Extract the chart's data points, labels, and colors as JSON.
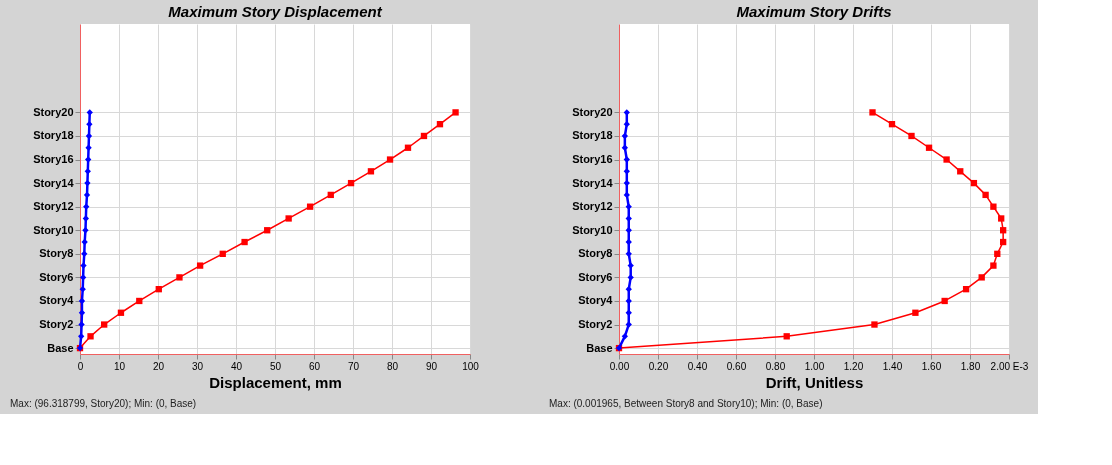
{
  "chart_data": [
    {
      "type": "line",
      "orientation": "horizontal",
      "title": "Maximum Story Displacement",
      "xlabel": "Displacement, mm",
      "categories": [
        null,
        null,
        null,
        null,
        null,
        null,
        null,
        "Story20",
        null,
        "Story18",
        null,
        "Story16",
        null,
        "Story14",
        null,
        "Story12",
        null,
        "Story10",
        null,
        "Story8",
        null,
        "Story6",
        null,
        "Story4",
        null,
        "Story2",
        null,
        "Base"
      ],
      "series": [
        {
          "color": "#ff0000",
          "marker": "square",
          "values": [
            null,
            null,
            null,
            null,
            null,
            null,
            null,
            96.3,
            92.3,
            88.2,
            84.1,
            79.5,
            74.6,
            69.5,
            64.3,
            59,
            53.5,
            48,
            42.2,
            36.6,
            30.8,
            25.5,
            20.2,
            15.2,
            10.5,
            6.2,
            2.7,
            0
          ]
        },
        {
          "color": "#0000ff",
          "marker": "diamond",
          "values": [
            null,
            null,
            null,
            null,
            null,
            null,
            null,
            2.5,
            2.4,
            2.3,
            2.2,
            2.1,
            2.0,
            1.9,
            1.8,
            1.6,
            1.5,
            1.4,
            1.2,
            1.1,
            0.9,
            0.8,
            0.7,
            0.5,
            0.5,
            0.4,
            0.3,
            0
          ]
        }
      ],
      "xlim": [
        0,
        100
      ],
      "xticks": [
        0,
        10,
        20,
        30,
        40,
        50,
        60,
        70,
        80,
        90,
        100
      ],
      "grid": true,
      "annotations": [
        "Max: (96.318799, Story20);   Min: (0, Base)"
      ]
    },
    {
      "type": "line",
      "orientation": "horizontal",
      "title": "Maximum Story Drifts",
      "xlabel": "Drift, Unitless",
      "categories": [
        null,
        null,
        null,
        null,
        null,
        null,
        null,
        "Story20",
        null,
        "Story18",
        null,
        "Story16",
        null,
        "Story14",
        null,
        "Story12",
        null,
        "Story10",
        null,
        "Story8",
        null,
        "Story6",
        null,
        "Story4",
        null,
        "Story2",
        null,
        "Base"
      ],
      "series": [
        {
          "color": "#ff0000",
          "marker": "square",
          "values": [
            null,
            null,
            null,
            null,
            null,
            null,
            null,
            1.3,
            1.4,
            1.5,
            1.59,
            1.68,
            1.75,
            1.82,
            1.88,
            1.92,
            1.96,
            1.97,
            1.97,
            1.94,
            1.92,
            1.86,
            1.78,
            1.67,
            1.52,
            1.31,
            0.86,
            0
          ]
        },
        {
          "color": "#0000ff",
          "marker": "diamond",
          "values": [
            null,
            null,
            null,
            null,
            null,
            null,
            null,
            0.04,
            0.04,
            0.03,
            0.03,
            0.04,
            0.04,
            0.04,
            0.04,
            0.05,
            0.05,
            0.05,
            0.05,
            0.05,
            0.06,
            0.06,
            0.05,
            0.05,
            0.05,
            0.05,
            0.03,
            0
          ]
        }
      ],
      "xlim": [
        0,
        2
      ],
      "xticks": [
        {
          "value": 0,
          "label": "0.00"
        },
        {
          "value": 0.2,
          "label": "0.20"
        },
        {
          "value": 0.4,
          "label": "0.40"
        },
        {
          "value": 0.6,
          "label": "0.60"
        },
        {
          "value": 0.8,
          "label": "0.80"
        },
        {
          "value": 1.0,
          "label": "1.00"
        },
        {
          "value": 1.2,
          "label": "1.20"
        },
        {
          "value": 1.4,
          "label": "1.40"
        },
        {
          "value": 1.6,
          "label": "1.60"
        },
        {
          "value": 1.8,
          "label": "1.80"
        },
        {
          "value": 2.0,
          "label": "2.00 E-3"
        }
      ],
      "grid": true,
      "annotations": [
        "Max: (0.001965, Between Story8 and Story10);   Min: (0, Base)"
      ]
    }
  ]
}
